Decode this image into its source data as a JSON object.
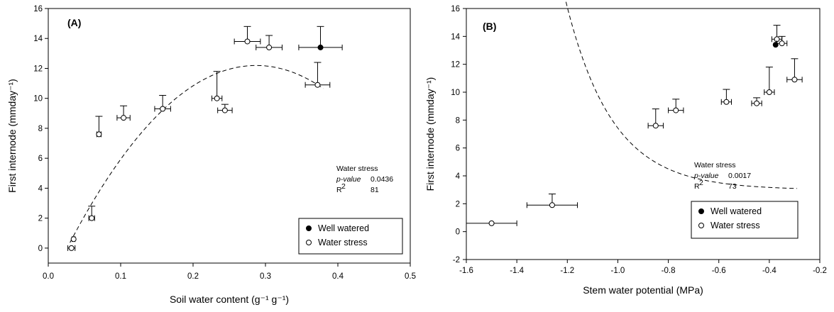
{
  "chart_data": [
    {
      "type": "scatter",
      "panel_label": "(A)",
      "xlabel": "Soil water content (g⁻¹ g⁻¹)",
      "ylabel": "First internode (mmday⁻¹)",
      "xlim": [
        0.0,
        0.5
      ],
      "ylim": [
        -1,
        16
      ],
      "xticks": [
        "0.0",
        "0.1",
        "0.2",
        "0.3",
        "0.4",
        "0.5"
      ],
      "yticks": [
        "0",
        "2",
        "4",
        "6",
        "8",
        "10",
        "12",
        "14",
        "16"
      ],
      "series": [
        {
          "name": "Water stress",
          "marker": "open-circle",
          "points": [
            {
              "x": 0.032,
              "y": 0.0,
              "yerr": 0.0,
              "xerr": 0.005
            },
            {
              "x": 0.035,
              "y": 0.6,
              "yerr": 0.0,
              "xerr": 0.002
            },
            {
              "x": 0.06,
              "y": 2.0,
              "yerr": 0.8,
              "xerr": 0.004
            },
            {
              "x": 0.07,
              "y": 7.6,
              "yerr": 1.2,
              "xerr": 0.003
            },
            {
              "x": 0.104,
              "y": 8.7,
              "yerr": 0.8,
              "xerr": 0.009
            },
            {
              "x": 0.158,
              "y": 9.3,
              "yerr": 0.9,
              "xerr": 0.011
            },
            {
              "x": 0.233,
              "y": 10.0,
              "yerr": 1.8,
              "xerr": 0.007
            },
            {
              "x": 0.244,
              "y": 9.2,
              "yerr": 0.4,
              "xerr": 0.01
            },
            {
              "x": 0.275,
              "y": 13.8,
              "yerr": 1.0,
              "xerr": 0.018
            },
            {
              "x": 0.305,
              "y": 13.4,
              "yerr": 0.8,
              "xerr": 0.018
            },
            {
              "x": 0.372,
              "y": 10.9,
              "yerr": 1.5,
              "xerr": 0.017
            }
          ]
        },
        {
          "name": "Well watered",
          "marker": "filled-circle",
          "points": [
            {
              "x": 0.376,
              "y": 13.4,
              "yerr": 1.4,
              "xerr": 0.03
            }
          ]
        }
      ],
      "fit_curve": {
        "style": "dashed",
        "equation": "y = -178.75*x^2 + 102.68*x - 2.55",
        "x_range": [
          0.03,
          0.38
        ]
      },
      "annotation": {
        "title": "Water stress",
        "pvalue_label": "p-value",
        "pvalue": "0.0436",
        "r2_label": "R",
        "r2_sup": "2",
        "r2": "81"
      },
      "legend": {
        "position": "bottom-right",
        "entries": [
          "Well watered",
          "Water stress"
        ]
      }
    },
    {
      "type": "scatter",
      "panel_label": "(B)",
      "xlabel": "Stem water potential (MPa)",
      "ylabel": "First internode (mmday⁻¹)",
      "xlim": [
        -1.6,
        -0.2
      ],
      "ylim": [
        -2,
        16
      ],
      "xticks": [
        "-1.6",
        "-1.4",
        "-1.2",
        "-1.0",
        "-0.8",
        "-0.6",
        "-0.4",
        "-0.2"
      ],
      "yticks": [
        "-2",
        "0",
        "2",
        "4",
        "6",
        "8",
        "10",
        "12",
        "14",
        "16"
      ],
      "series": [
        {
          "name": "Water stress",
          "marker": "open-circle",
          "points": [
            {
              "x": -1.5,
              "y": 0.6,
              "yerr": 0.0,
              "xerr": 0.1
            },
            {
              "x": -1.26,
              "y": 1.9,
              "yerr": 0.8,
              "xerr": 0.1
            },
            {
              "x": -0.85,
              "y": 7.6,
              "yerr": 1.2,
              "xerr": 0.03
            },
            {
              "x": -0.77,
              "y": 8.7,
              "yerr": 0.8,
              "xerr": 0.03
            },
            {
              "x": -0.57,
              "y": 9.3,
              "yerr": 0.9,
              "xerr": 0.02
            },
            {
              "x": -0.45,
              "y": 9.2,
              "yerr": 0.4,
              "xerr": 0.02
            },
            {
              "x": -0.4,
              "y": 10.0,
              "yerr": 1.8,
              "xerr": 0.02
            },
            {
              "x": -0.37,
              "y": 13.8,
              "yerr": 1.0,
              "xerr": 0.02
            },
            {
              "x": -0.35,
              "y": 13.5,
              "yerr": 0.5,
              "xerr": 0.02
            },
            {
              "x": -0.3,
              "y": 10.9,
              "yerr": 1.5,
              "xerr": 0.03
            }
          ]
        },
        {
          "name": "Well watered",
          "marker": "filled-circle",
          "points": [
            {
              "x": -0.375,
              "y": 13.4,
              "yerr": 0.0,
              "xerr": 0.0
            }
          ]
        }
      ],
      "fit_curve": {
        "style": "dashed",
        "equation": "y = 3.0 + 0.0196*exp(-5.42*x)",
        "x_range": [
          -1.5,
          -0.29
        ]
      },
      "annotation": {
        "title": "Water stress",
        "pvalue_label": "p-value",
        "pvalue": "0.0017",
        "r2_label": "R",
        "r2_sup": "2",
        "r2": "73"
      },
      "legend": {
        "position": "bottom-right",
        "entries": [
          "Well watered",
          "Water stress"
        ]
      }
    }
  ]
}
